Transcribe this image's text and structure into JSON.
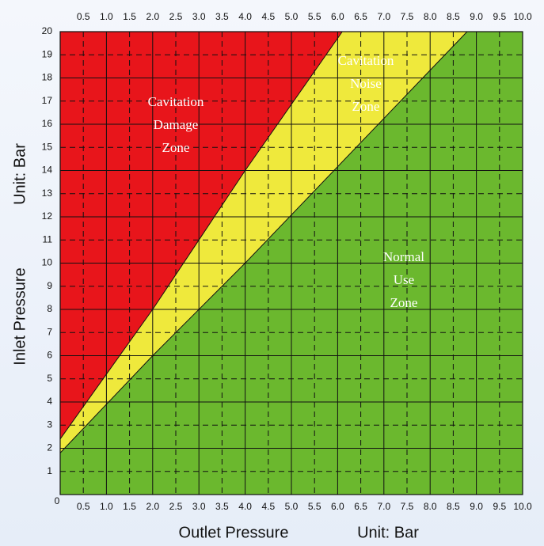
{
  "chart_data": {
    "type": "area",
    "x_label": "Outlet Pressure",
    "x_unit": "Unit: Bar",
    "y_label": "Inlet Pressure",
    "y_unit": "Unit: Bar",
    "xlim": [
      0,
      10
    ],
    "ylim": [
      0,
      20
    ],
    "xticks": [
      0,
      0.5,
      {
        "value": 1,
        "label": "1.0"
      },
      1.5,
      {
        "value": 2,
        "label": "2.0"
      },
      2.5,
      {
        "value": 3,
        "label": "3.0"
      },
      3.5,
      {
        "value": 4,
        "label": "4.0"
      },
      4.5,
      {
        "value": 5,
        "label": "5.0"
      },
      5.5,
      {
        "value": 6,
        "label": "6.0"
      },
      6.5,
      {
        "value": 7,
        "label": "7.0"
      },
      7.5,
      {
        "value": 8,
        "label": "8.0"
      },
      8.5,
      {
        "value": 9,
        "label": "9.0"
      },
      9.5,
      {
        "value": 10,
        "label": "10.0"
      }
    ],
    "yticks": [
      1,
      2,
      3,
      4,
      5,
      6,
      7,
      8,
      9,
      10,
      11,
      12,
      13,
      14,
      15,
      16,
      17,
      18,
      19,
      20
    ],
    "grid": true,
    "boundaries": [
      {
        "x": [
          0,
          2,
          4,
          6.1
        ],
        "y": [
          2.4,
          8,
          14,
          20
        ]
      },
      {
        "x": [
          0,
          2,
          4,
          8.8
        ],
        "y": [
          1.8,
          6,
          10,
          20
        ]
      }
    ],
    "zones": [
      {
        "label": [
          "Cavitation",
          "Damage",
          "Zone"
        ],
        "color": "#e8151b"
      },
      {
        "label": [
          "Cavitation",
          "Noise",
          "Zone"
        ],
        "color": "#efe93c"
      },
      {
        "label": [
          "Normal",
          "Use",
          "Zone"
        ],
        "color": "#6bb82e"
      }
    ]
  }
}
